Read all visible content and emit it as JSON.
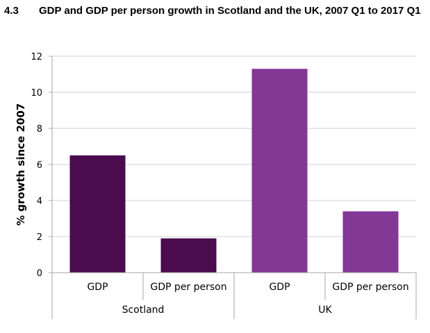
{
  "figure": {
    "number": "4.3",
    "title": "GDP and GDP per person growth in Scotland and the UK, 2007 Q1 to 2017 Q1"
  },
  "colors": {
    "scotland": "#4a0c4e",
    "uk": "#843895",
    "grid": "#d0d0d0",
    "axis": "#a6a6a6"
  },
  "chart_data": {
    "type": "bar",
    "title": "GDP and GDP per person growth in Scotland and the UK, 2007 Q1 to 2017 Q1",
    "ylabel": "% growth since 2007",
    "xlabel": "",
    "ylim": [
      0,
      12
    ],
    "yticks": [
      0,
      2,
      4,
      6,
      8,
      10,
      12
    ],
    "groups": [
      "Scotland",
      "UK"
    ],
    "categories": [
      "GDP",
      "GDP per person",
      "GDP",
      "GDP per person"
    ],
    "group_of": [
      "Scotland",
      "Scotland",
      "UK",
      "UK"
    ],
    "values": [
      6.5,
      1.9,
      11.3,
      3.4
    ],
    "grid": true,
    "legend": "none"
  }
}
